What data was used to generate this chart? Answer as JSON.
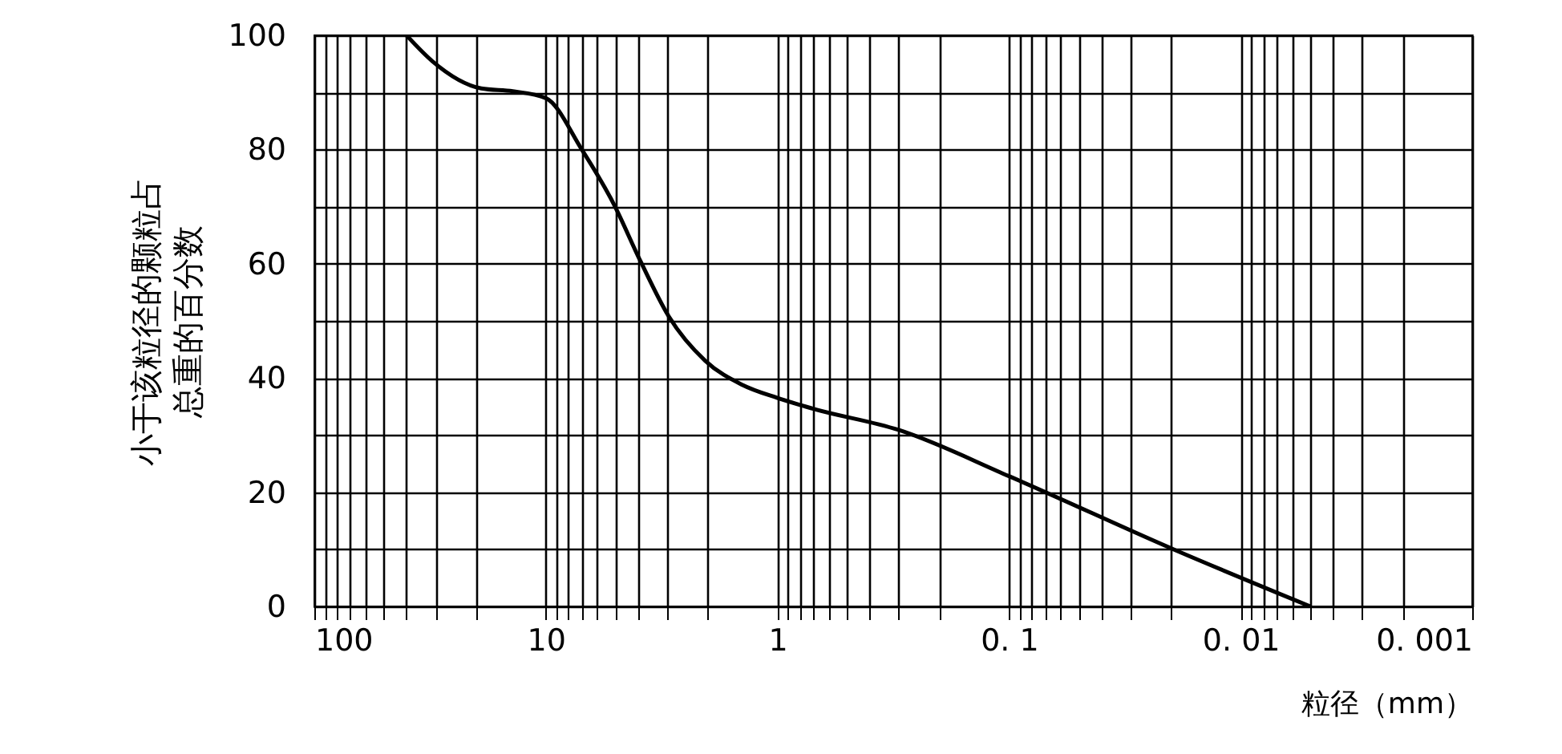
{
  "chart_data": {
    "type": "line",
    "xlabel": "粒径（mm）",
    "ylabel": "小于该粒径的颗粒占总重的百分数",
    "x": [
      40,
      31,
      19,
      13.9,
      10,
      7,
      5.1,
      3.9,
      2.95,
      2.05,
      1.42,
      1,
      0.7,
      0.3,
      0.1,
      0.019,
      0.005
    ],
    "series": [
      {
        "color": "#000000",
        "values": [
          100,
          95.5,
          90.7,
          90.2,
          89,
          80,
          70.5,
          60.4,
          50.8,
          43,
          38.8,
          36.5,
          34.6,
          30.9,
          22.8,
          9.8,
          0
        ]
      }
    ],
    "log": "x",
    "xlim": [
      100,
      0.001
    ],
    "ylim": [
      0,
      100
    ],
    "xticks": [
      {
        "value": 100,
        "label": "100"
      },
      {
        "value": 90,
        "label": null
      },
      {
        "value": 80,
        "label": null
      },
      {
        "value": 70,
        "label": null
      },
      {
        "value": 60,
        "label": null
      },
      {
        "value": 50,
        "label": null
      },
      {
        "value": 40,
        "label": null
      },
      {
        "value": 30,
        "label": null
      },
      {
        "value": 20,
        "label": null
      },
      {
        "value": 10,
        "label": "10"
      },
      {
        "value": 9,
        "label": null
      },
      {
        "value": 8,
        "label": null
      },
      {
        "value": 7,
        "label": null
      },
      {
        "value": 6,
        "label": null
      },
      {
        "value": 5,
        "label": null
      },
      {
        "value": 4,
        "label": null
      },
      {
        "value": 3,
        "label": null
      },
      {
        "value": 2,
        "label": null
      },
      {
        "value": 1,
        "label": "1"
      },
      {
        "value": 0.9,
        "label": null
      },
      {
        "value": 0.8,
        "label": null
      },
      {
        "value": 0.7,
        "label": null
      },
      {
        "value": 0.6,
        "label": null
      },
      {
        "value": 0.5,
        "label": null
      },
      {
        "value": 0.4,
        "label": null
      },
      {
        "value": 0.3,
        "label": null
      },
      {
        "value": 0.2,
        "label": null
      },
      {
        "value": 0.1,
        "label": "0. 1"
      },
      {
        "value": 0.09,
        "label": null
      },
      {
        "value": 0.08,
        "label": null
      },
      {
        "value": 0.07,
        "label": null
      },
      {
        "value": 0.06,
        "label": null
      },
      {
        "value": 0.05,
        "label": null
      },
      {
        "value": 0.04,
        "label": null
      },
      {
        "value": 0.03,
        "label": null
      },
      {
        "value": 0.02,
        "label": null
      },
      {
        "value": 0.01,
        "label": "0. 01"
      },
      {
        "value": 0.009,
        "label": null
      },
      {
        "value": 0.008,
        "label": null
      },
      {
        "value": 0.007,
        "label": null
      },
      {
        "value": 0.006,
        "label": null
      },
      {
        "value": 0.005,
        "label": null
      },
      {
        "value": 0.004,
        "label": null
      },
      {
        "value": 0.003,
        "label": null
      },
      {
        "value": 0.002,
        "label": null
      },
      {
        "value": 0.001,
        "label": "0. 001"
      }
    ],
    "yticks": [
      0,
      {
        "value": 10,
        "label": null
      },
      20,
      {
        "value": 30,
        "label": null
      },
      40,
      {
        "value": 50,
        "label": null
      },
      60,
      {
        "value": 70,
        "label": null
      },
      80,
      {
        "value": 90,
        "label": null
      },
      100
    ],
    "grid": true,
    "marker": "none",
    "line_style": "solid"
  }
}
